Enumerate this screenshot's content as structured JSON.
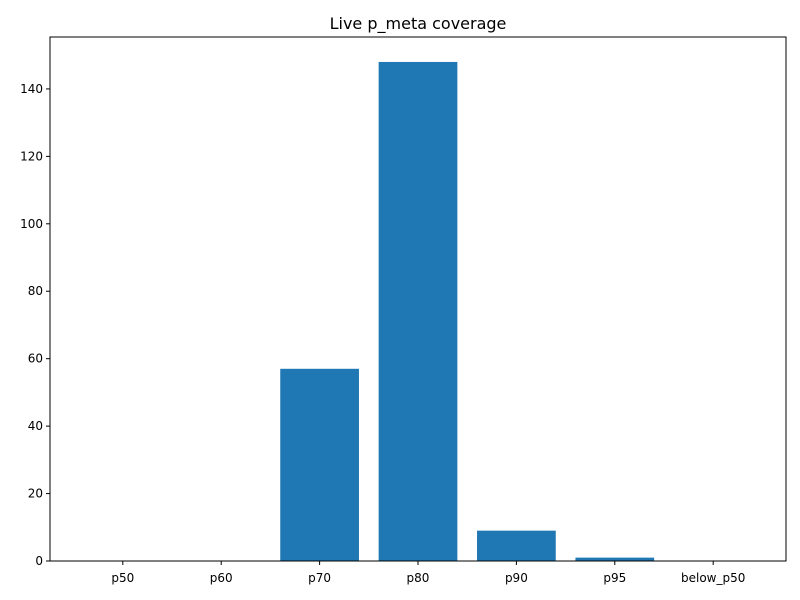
{
  "chart_data": {
    "type": "bar",
    "title": "Live p_meta coverage",
    "xlabel": "",
    "ylabel": "",
    "categories": [
      "p50",
      "p60",
      "p70",
      "p80",
      "p90",
      "p95",
      "below_p50"
    ],
    "values": [
      0,
      0,
      57,
      148,
      9,
      1,
      0
    ],
    "ylim": [
      0,
      155.4
    ],
    "yticks": [
      0,
      20,
      40,
      60,
      80,
      100,
      120,
      140
    ],
    "bar_color": "#1f77b4",
    "grid": false,
    "legend": "none"
  }
}
